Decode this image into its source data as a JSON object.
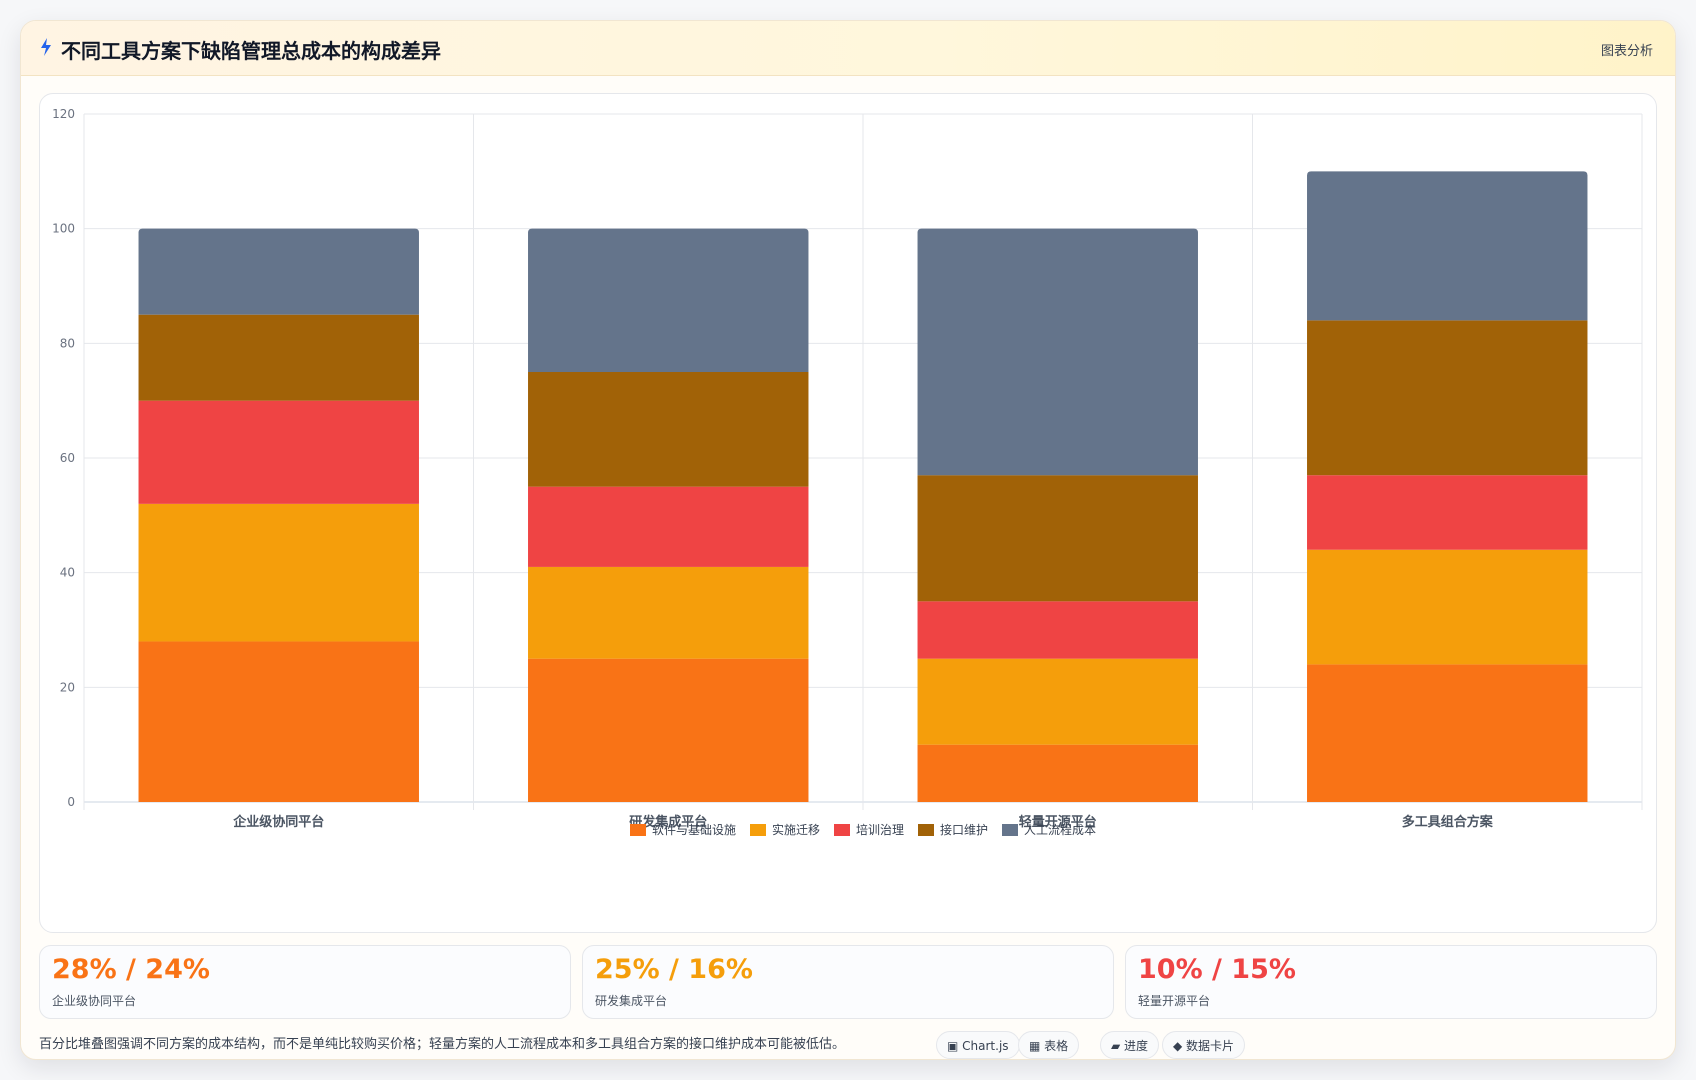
{
  "header": {
    "title": "不同工具方案下缺陷管理总成本的构成差异",
    "tag": "图表分析",
    "icon": "lightning-icon",
    "accent": "#2563eb"
  },
  "chart_data": {
    "type": "bar",
    "stacked": true,
    "categories": [
      "企业级协同平台",
      "研发集成平台",
      "轻量开源平台",
      "多工具组合方案"
    ],
    "series": [
      {
        "name": "软件与基础设施",
        "color": "#f97316",
        "values": [
          28,
          25,
          10,
          24
        ]
      },
      {
        "name": "实施迁移",
        "color": "#f59e0b",
        "values": [
          24,
          16,
          15,
          20
        ]
      },
      {
        "name": "培训治理",
        "color": "#ef4444",
        "values": [
          18,
          14,
          10,
          13
        ]
      },
      {
        "name": "接口维护",
        "color": "#a16207",
        "values": [
          15,
          20,
          22,
          27
        ]
      },
      {
        "name": "人工流程成本",
        "color": "#64748b",
        "values": [
          15,
          25,
          43,
          26
        ]
      }
    ],
    "ylim": [
      0,
      120
    ],
    "yticks": [
      "0",
      "20",
      "40",
      "60",
      "80",
      "100",
      "120"
    ],
    "grid": true,
    "legend": "bottom-center"
  },
  "kpis": [
    {
      "value": "28% / 24%",
      "label": "企业级协同平台",
      "color": "#f97316"
    },
    {
      "value": "25% / 16%",
      "label": "研发集成平台",
      "color": "#f59e0b"
    },
    {
      "value": "10% / 15%",
      "label": "轻量开源平台",
      "color": "#ef4444"
    }
  ],
  "footer": {
    "note": "百分比堆叠图强调不同方案的成本结构，而不是单纯比较购买价格；轻量方案的人工流程成本和多工具组合方案的接口维护成本可能被低估。",
    "chips": [
      "▣ Chart.js",
      "▦ 表格",
      "▰ 进度",
      "◆ 数据卡片"
    ]
  }
}
